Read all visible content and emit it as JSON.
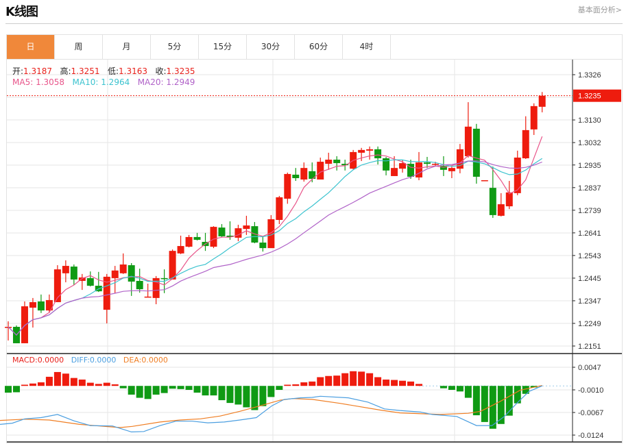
{
  "header": {
    "title": "K线图",
    "fundamental_link": "基本面分析>"
  },
  "tabs": [
    {
      "label": "日",
      "active": true
    },
    {
      "label": "周"
    },
    {
      "label": "月"
    },
    {
      "label": "5分"
    },
    {
      "label": "15分"
    },
    {
      "label": "30分"
    },
    {
      "label": "60分"
    },
    {
      "label": "4时"
    }
  ],
  "ohlc_info": {
    "open_label": "开:",
    "open": "1.3187",
    "high_label": "高:",
    "high": "1.3251",
    "low_label": "低:",
    "low": "1.3163",
    "close_label": "收:",
    "close": "1.3235"
  },
  "ma_info": {
    "ma5_label": "MA5:",
    "ma5": "1.3058",
    "ma10_label": "MA10:",
    "ma10": "1.2964",
    "ma20_label": "MA20:",
    "ma20": "1.2949"
  },
  "macd_info": {
    "macd_label": "MACD:",
    "macd": "0.0000",
    "diff_label": "DIFF:",
    "diff": "0.0000",
    "dea_label": "DEA:",
    "dea": "0.0000"
  },
  "colors": {
    "up": "#ee1c0e",
    "down": "#0f9a14",
    "ma5": "#e8558a",
    "ma10": "#3cc3cf",
    "ma20": "#b062c8",
    "diff": "#4a9ee0",
    "dea": "#ef7d22",
    "accent": "#f0883a"
  },
  "chart_data": [
    {
      "type": "candlestick",
      "ylim": [
        1.2151,
        1.3326
      ],
      "y_ticks": [
        "1.3326",
        "1.3130",
        "1.3032",
        "1.2935",
        "1.2837",
        "1.2739",
        "1.2641",
        "1.2543",
        "1.2445",
        "1.2347",
        "1.2249",
        "1.2151"
      ],
      "current_price": "1.3235",
      "grid": true,
      "candles": [
        [
          1.2231,
          1.2258,
          1.2175,
          1.2234
        ],
        [
          1.2234,
          1.224,
          1.2163,
          1.2163
        ],
        [
          1.2163,
          1.2344,
          1.2163,
          1.2323
        ],
        [
          1.2317,
          1.2359,
          1.2231,
          1.2341
        ],
        [
          1.2344,
          1.2374,
          1.2294,
          1.2305
        ],
        [
          1.2305,
          1.2374,
          1.2294,
          1.235
        ],
        [
          1.2341,
          1.2501,
          1.2341,
          1.2483
        ],
        [
          1.2466,
          1.2522,
          1.2427,
          1.2498
        ],
        [
          1.2495,
          1.2504,
          1.2415,
          1.2439
        ],
        [
          1.2433,
          1.2463,
          1.2394,
          1.2448
        ],
        [
          1.2445,
          1.2474,
          1.2409,
          1.2412
        ],
        [
          1.2412,
          1.2472,
          1.2385,
          1.2388
        ],
        [
          1.2308,
          1.2463,
          1.2249,
          1.2451
        ],
        [
          1.2445,
          1.2498,
          1.238,
          1.2478
        ],
        [
          1.2466,
          1.2552,
          1.2463,
          1.2504
        ],
        [
          1.2501,
          1.251,
          1.2368,
          1.243
        ],
        [
          1.2433,
          1.2486,
          1.2382,
          1.2397
        ],
        [
          1.2362,
          1.2421,
          1.2362,
          1.2365
        ],
        [
          1.2359,
          1.2454,
          1.2332,
          1.2445
        ],
        [
          1.2445,
          1.2483,
          1.238,
          1.2442
        ],
        [
          1.2439,
          1.2569,
          1.2439,
          1.2563
        ],
        [
          1.2552,
          1.2629,
          1.2549,
          1.2584
        ],
        [
          1.2581,
          1.2632,
          1.2578,
          1.2623
        ],
        [
          1.2623,
          1.2641,
          1.2608,
          1.2611
        ],
        [
          1.2602,
          1.2641,
          1.2563,
          1.2584
        ],
        [
          1.2581,
          1.267,
          1.2575,
          1.2667
        ],
        [
          1.2664,
          1.2679,
          1.2623,
          1.2626
        ],
        [
          1.2629,
          1.2691,
          1.2611,
          1.2623
        ],
        [
          1.262,
          1.2676,
          1.2605,
          1.2661
        ],
        [
          1.2658,
          1.2715,
          1.2632,
          1.2673
        ],
        [
          1.267,
          1.2688,
          1.2596,
          1.2599
        ],
        [
          1.2599,
          1.2623,
          1.256,
          1.2575
        ],
        [
          1.2575,
          1.2718,
          1.2575,
          1.27
        ],
        [
          1.2697,
          1.2801,
          1.2679,
          1.2795
        ],
        [
          1.2789,
          1.2902,
          1.2767,
          1.2896
        ],
        [
          1.2893,
          1.2922,
          1.2866,
          1.2878
        ],
        [
          1.2872,
          1.2946,
          1.2863,
          1.2922
        ],
        [
          1.2908,
          1.2946,
          1.286,
          1.2875
        ],
        [
          1.2872,
          1.2967,
          1.2872,
          1.2949
        ],
        [
          1.294,
          1.2988,
          1.2914,
          1.2958
        ],
        [
          1.2958,
          1.2973,
          1.2911,
          1.2943
        ],
        [
          1.294,
          1.2958,
          1.2911,
          1.2934
        ],
        [
          1.2919,
          1.3,
          1.2916,
          1.2991
        ],
        [
          1.2988,
          1.3009,
          1.2952,
          1.3
        ],
        [
          1.2997,
          1.3015,
          1.2958,
          1.3003
        ],
        [
          1.3003,
          1.3015,
          1.2937,
          1.2964
        ],
        [
          1.2964,
          1.297,
          1.289,
          1.2911
        ],
        [
          1.2887,
          1.2973,
          1.2887,
          1.2922
        ],
        [
          1.2919,
          1.2955,
          1.2902,
          1.2943
        ],
        [
          1.294,
          1.2958,
          1.2875,
          1.2884
        ],
        [
          1.2881,
          1.2991,
          1.2869,
          1.2946
        ],
        [
          1.2946,
          1.297,
          1.2922,
          1.294
        ],
        [
          1.2937,
          1.2949,
          1.2928,
          1.294
        ],
        [
          1.2931,
          1.2973,
          1.2887,
          1.2914
        ],
        [
          1.2908,
          1.2928,
          1.2878,
          1.2922
        ],
        [
          1.2919,
          1.3026,
          1.2899,
          1.3003
        ],
        [
          1.2973,
          1.3207,
          1.2967,
          1.3101
        ],
        [
          1.3092,
          1.3113,
          1.2854,
          1.2884
        ],
        [
          1.2869,
          1.2869,
          1.2869,
          1.2869
        ],
        [
          1.2836,
          1.2928,
          1.2706,
          1.2718
        ],
        [
          1.2715,
          1.2813,
          1.2712,
          1.2765
        ],
        [
          1.2756,
          1.2866,
          1.2744,
          1.2816
        ],
        [
          1.2813,
          1.2997,
          1.2804,
          1.2967
        ],
        [
          1.2964,
          1.3146,
          1.2961,
          1.3086
        ],
        [
          1.3089,
          1.3202,
          1.3065,
          1.319
        ],
        [
          1.3187,
          1.3251,
          1.3163,
          1.3235
        ]
      ],
      "ma_periods": [
        5,
        10,
        20
      ]
    },
    {
      "type": "macd",
      "ylim": [
        -0.0133,
        0.006
      ],
      "y_ticks": [
        "0.0047",
        "-0.0010",
        "-0.0067",
        "-0.0124"
      ],
      "histogram": [
        -0.0017,
        -0.0016,
        0.0003,
        0.0006,
        0.0009,
        0.0023,
        0.0035,
        0.0031,
        0.002,
        0.0016,
        0.0008,
        0.0005,
        0.0008,
        0.0004,
        -0.0006,
        -0.0022,
        -0.003,
        -0.0033,
        -0.0022,
        -0.0018,
        -0.0007,
        -0.0008,
        -0.001,
        -0.0017,
        -0.0024,
        -0.0024,
        -0.0036,
        -0.0043,
        -0.0047,
        -0.0054,
        -0.0061,
        -0.0051,
        -0.0028,
        -0.001,
        0.0003,
        0.0004,
        0.0009,
        0.0011,
        0.0022,
        0.0025,
        0.0026,
        0.0032,
        0.0037,
        0.0036,
        0.0032,
        0.0022,
        0.0016,
        0.0015,
        0.0013,
        0.0011,
        0.0005,
        0.0,
        0.0,
        -0.0006,
        -0.001,
        -0.0014,
        -0.003,
        -0.0074,
        -0.0091,
        -0.0108,
        -0.0096,
        -0.0075,
        -0.0044,
        -0.002,
        -0.0004,
        0.0
      ],
      "diff": [
        [
          0,
          -0.0097
        ],
        [
          1.5,
          -0.0094
        ],
        [
          3,
          -0.0083
        ],
        [
          5,
          -0.008
        ],
        [
          7,
          -0.0072
        ],
        [
          9,
          -0.0088
        ],
        [
          11,
          -0.01
        ],
        [
          13.7,
          -0.0101
        ],
        [
          16,
          -0.0116
        ],
        [
          17.5,
          -0.0115
        ],
        [
          19.5,
          -0.01
        ],
        [
          21.4,
          -0.0089
        ],
        [
          23.4,
          -0.0089
        ],
        [
          25.3,
          -0.0093
        ],
        [
          27.3,
          -0.0091
        ],
        [
          29.2,
          -0.0086
        ],
        [
          31.2,
          -0.008
        ],
        [
          33.1,
          -0.005
        ],
        [
          34.6,
          -0.0034
        ],
        [
          36.6,
          -0.003
        ],
        [
          38,
          -0.0029
        ],
        [
          39,
          -0.0026
        ],
        [
          42.4,
          -0.003
        ],
        [
          44.8,
          -0.0041
        ],
        [
          46.8,
          -0.0058
        ],
        [
          48.7,
          -0.0062
        ],
        [
          51.2,
          -0.0066
        ],
        [
          52.6,
          -0.0072
        ],
        [
          55.6,
          -0.0077
        ],
        [
          58,
          -0.01
        ],
        [
          59.9,
          -0.01
        ],
        [
          61.4,
          -0.0077
        ],
        [
          62.9,
          -0.0044
        ],
        [
          64.4,
          -0.0014
        ],
        [
          66,
          0.0
        ]
      ],
      "dea": [
        [
          0,
          -0.0087
        ],
        [
          3,
          -0.0084
        ],
        [
          6,
          -0.0086
        ],
        [
          9.7,
          -0.0097
        ],
        [
          14.6,
          -0.0105
        ],
        [
          16.1,
          -0.0102
        ],
        [
          19.5,
          -0.0091
        ],
        [
          21.9,
          -0.0086
        ],
        [
          24.4,
          -0.0083
        ],
        [
          26.8,
          -0.0076
        ],
        [
          29.2,
          -0.0064
        ],
        [
          31.7,
          -0.005
        ],
        [
          34.1,
          -0.0036
        ],
        [
          35.6,
          -0.0032
        ],
        [
          38,
          -0.0034
        ],
        [
          41.4,
          -0.0044
        ],
        [
          46.3,
          -0.0061
        ],
        [
          48.7,
          -0.0068
        ],
        [
          53.6,
          -0.0072
        ],
        [
          57,
          -0.0069
        ],
        [
          58.5,
          -0.0064
        ],
        [
          60.9,
          -0.0039
        ],
        [
          63.3,
          -0.0011
        ],
        [
          66,
          0.0001
        ]
      ]
    }
  ]
}
